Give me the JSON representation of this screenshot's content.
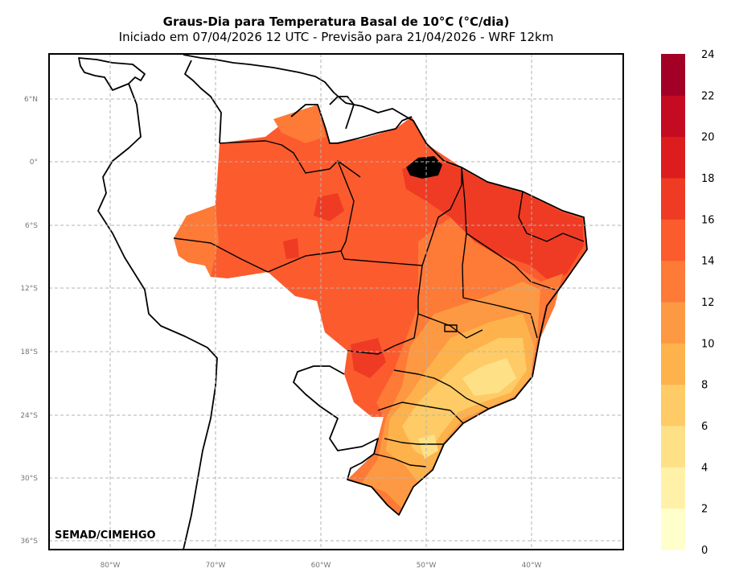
{
  "title": "Graus-Dia para Temperatura Basal de 10°C (°C/dia)",
  "subtitle": "Iniciado em 07/04/2026 12 UTC - Previsão para 21/04/2026 - WRF 12km",
  "credit": "SEMAD/CIMEHGO",
  "lat_ticks": [
    "6°N",
    "0°",
    "6°S",
    "12°S",
    "18°S",
    "24°S",
    "30°S",
    "36°S"
  ],
  "lon_ticks": [
    "80°W",
    "70°W",
    "60°W",
    "50°W",
    "40°W"
  ],
  "colorbar": {
    "ticks": [
      "0",
      "2",
      "4",
      "6",
      "8",
      "10",
      "12",
      "14",
      "16",
      "18",
      "20",
      "22",
      "24"
    ],
    "colors": [
      "#ffffcc",
      "#fff1a8",
      "#fee187",
      "#fecb66",
      "#feb24c",
      "#fd9942",
      "#fd7a37",
      "#fc5b2e",
      "#ef3b24",
      "#dd1c1d",
      "#c50b22",
      "#a30026"
    ]
  }
}
